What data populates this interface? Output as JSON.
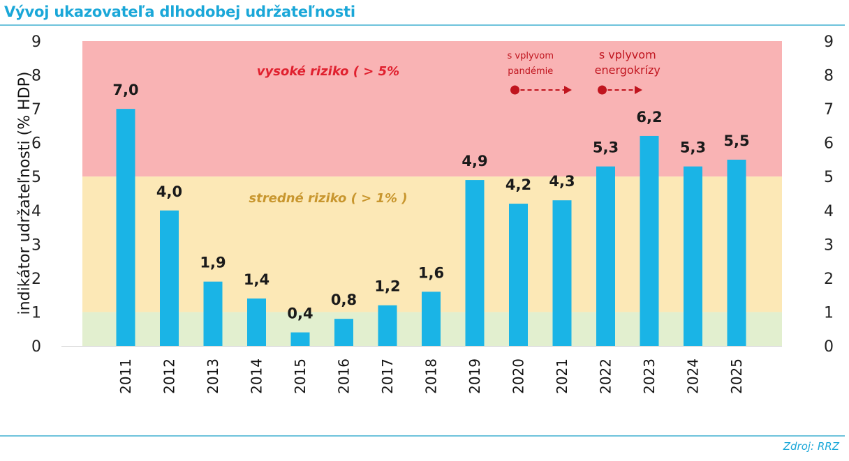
{
  "page": {
    "title": "Vývoj ukazovateľa dlhodobej udržateľnosti",
    "source": "Zdroj: RRZ",
    "title_color": "#1aa7d8",
    "rule_color": "#6fc3dc",
    "source_color": "#1aa7d8"
  },
  "chart_data": {
    "type": "bar",
    "categories": [
      "2011",
      "2012",
      "2013",
      "2014",
      "2015",
      "2016",
      "2017",
      "2018",
      "2019",
      "2020",
      "2021",
      "2022",
      "2023",
      "2024",
      "2025"
    ],
    "values": [
      7.0,
      4.0,
      1.9,
      1.4,
      0.4,
      0.8,
      1.2,
      1.6,
      4.9,
      4.2,
      4.3,
      5.3,
      6.2,
      5.3,
      5.5
    ],
    "value_labels": [
      "7,0",
      "4,0",
      "1,9",
      "1,4",
      "0,4",
      "0,8",
      "1,2",
      "1,6",
      "4,9",
      "4,2",
      "4,3",
      "5,3",
      "6,2",
      "5,3",
      "5,5"
    ],
    "ylabel": "indikátor udržateľnosti (% HDP)",
    "xlabel": "",
    "ylim": [
      0,
      9
    ],
    "yticks": [
      "0",
      "1",
      "2",
      "3",
      "4",
      "5",
      "6",
      "7",
      "8",
      "9"
    ],
    "secondary_axis": true,
    "grid": false,
    "bar_color": "#1ab4e6",
    "zones": [
      {
        "from": 5,
        "to": 9,
        "label": "vysoké riziko ( > 5%",
        "fill": "#f9b3b4",
        "label_color": "#e0202e"
      },
      {
        "from": 1,
        "to": 5,
        "label": "stredné riziko ( > 1% )",
        "fill": "#fce8b6",
        "label_color": "#c8962e"
      },
      {
        "from": 0,
        "to": 1,
        "label": "",
        "fill": "#e2efcf",
        "label_color": ""
      }
    ],
    "annotations": [
      {
        "lines": [
          "s vplyvom",
          "pandémie"
        ],
        "from_category": "2020",
        "to_category": "2021",
        "color": "#c0141e"
      },
      {
        "lines": [
          "s vplyvom",
          "energokrízy"
        ],
        "from_category": "2022",
        "to_category": "2023",
        "color": "#c0141e"
      }
    ]
  }
}
